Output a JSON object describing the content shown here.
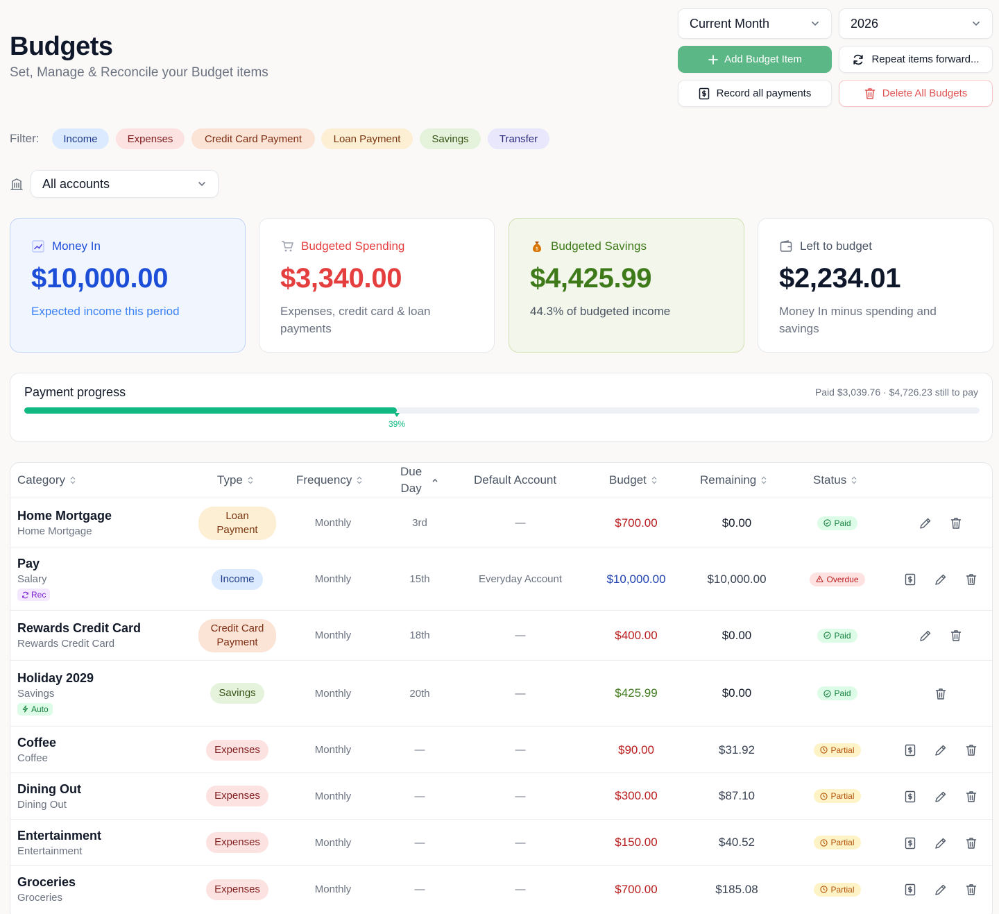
{
  "header": {
    "title": "Budgets",
    "subtitle": "Set, Manage & Reconcile your Budget items"
  },
  "controls": {
    "period_select": "Current Month",
    "year_select": "2026",
    "add_label": "Add Budget Item",
    "repeat_label": "Repeat items forward...",
    "record_label": "Record all payments",
    "delete_label": "Delete All Budgets"
  },
  "filter": {
    "label": "Filter:",
    "chips": [
      "Income",
      "Expenses",
      "Credit Card Payment",
      "Loan Payment",
      "Savings",
      "Transfer"
    ]
  },
  "accounts_select": "All accounts",
  "cards": [
    {
      "title": "Money In",
      "amount": "$10,000.00",
      "desc": "Expected income this period",
      "icon": "chart-up-icon"
    },
    {
      "title": "Budgeted Spending",
      "amount": "$3,340.00",
      "desc": "Expenses, credit card & loan payments",
      "icon": "cart-icon"
    },
    {
      "title": "Budgeted Savings",
      "amount": "$4,425.99",
      "desc": "44.3% of budgeted income",
      "icon": "money-bag-icon"
    },
    {
      "title": "Left to budget",
      "amount": "$2,234.01",
      "desc": "Money In minus spending and savings",
      "icon": "wallet-icon"
    }
  ],
  "progress": {
    "title": "Payment progress",
    "summary": "Paid $3,039.76 · $4,726.23 still to pay",
    "percent": 39,
    "percent_label": "39%"
  },
  "table": {
    "headers": {
      "category": "Category",
      "type": "Type",
      "frequency": "Frequency",
      "due_day_1": "Due",
      "due_day_2": "Day",
      "default_account": "Default Account",
      "budget": "Budget",
      "remaining": "Remaining",
      "status": "Status"
    },
    "rows": [
      {
        "name": "Home Mortgage",
        "sub": "Home Mortgage",
        "tag": "",
        "type": "Loan Payment",
        "frequency": "Monthly",
        "due": "3rd",
        "account": "—",
        "budget": "$700.00",
        "remaining": "$0.00",
        "status": "Paid"
      },
      {
        "name": "Pay",
        "sub": "Salary",
        "tag": "Rec",
        "type": "Income",
        "frequency": "Monthly",
        "due": "15th",
        "account": "Everyday Account",
        "budget": "$10,000.00",
        "remaining": "$10,000.00",
        "status": "Overdue"
      },
      {
        "name": "Rewards Credit Card",
        "sub": "Rewards Credit Card",
        "tag": "",
        "type": "Credit Card Payment",
        "frequency": "Monthly",
        "due": "18th",
        "account": "—",
        "budget": "$400.00",
        "remaining": "$0.00",
        "status": "Paid"
      },
      {
        "name": "Holiday 2029",
        "sub": "Savings",
        "tag": "Auto",
        "type": "Savings",
        "frequency": "Monthly",
        "due": "20th",
        "account": "—",
        "budget": "$425.99",
        "remaining": "$0.00",
        "status": "Paid"
      },
      {
        "name": "Coffee",
        "sub": "Coffee",
        "tag": "",
        "type": "Expenses",
        "frequency": "Monthly",
        "due": "—",
        "account": "—",
        "budget": "$90.00",
        "remaining": "$31.92",
        "status": "Partial"
      },
      {
        "name": "Dining Out",
        "sub": "Dining Out",
        "tag": "",
        "type": "Expenses",
        "frequency": "Monthly",
        "due": "—",
        "account": "—",
        "budget": "$300.00",
        "remaining": "$87.10",
        "status": "Partial"
      },
      {
        "name": "Entertainment",
        "sub": "Entertainment",
        "tag": "",
        "type": "Expenses",
        "frequency": "Monthly",
        "due": "—",
        "account": "—",
        "budget": "$150.00",
        "remaining": "$40.52",
        "status": "Partial"
      },
      {
        "name": "Groceries",
        "sub": "Groceries",
        "tag": "",
        "type": "Expenses",
        "frequency": "Monthly",
        "due": "—",
        "account": "—",
        "budget": "$700.00",
        "remaining": "$185.08",
        "status": "Partial"
      }
    ]
  },
  "colors": {
    "accent_green": "#5bb886",
    "income_blue": "#1d4ed8",
    "spending_red": "#e53e3e",
    "savings_green": "#3f7a1a",
    "progress_green": "#10b981"
  }
}
